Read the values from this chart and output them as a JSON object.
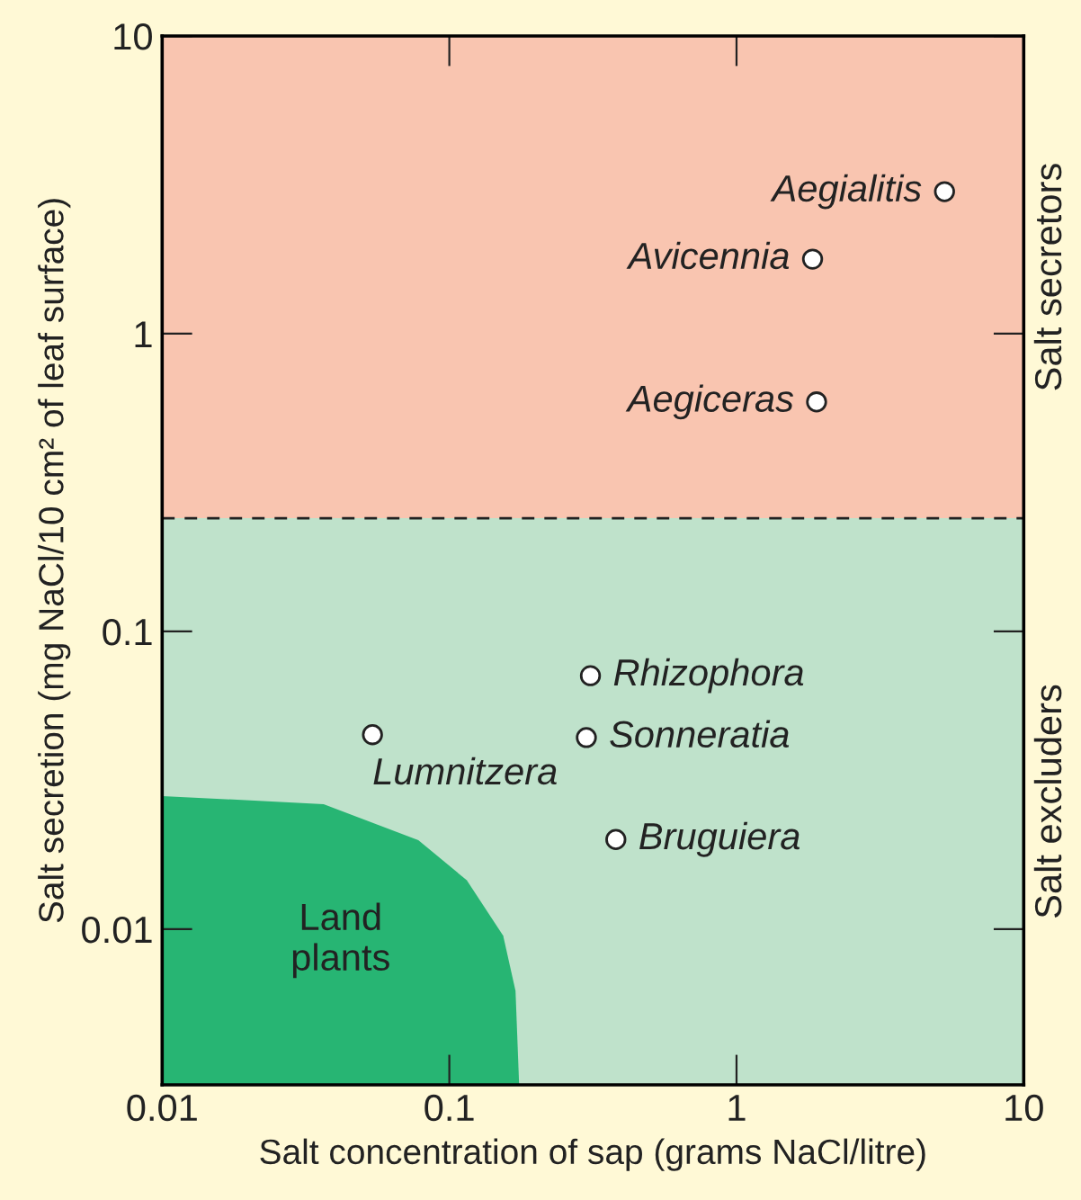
{
  "chart_data": {
    "type": "scatter",
    "xlabel": "Salt concentration of sap (grams NaCl/litre)",
    "ylabel": "Salt secretion (mg NaCl/10 cm² of leaf surface)",
    "log": "xy",
    "xlim": [
      0.01,
      10
    ],
    "ylim": [
      0.003,
      10
    ],
    "xticks": [
      0.01,
      0.1,
      1,
      10
    ],
    "yticks": [
      0.01,
      0.1,
      1,
      10
    ],
    "grid": false,
    "legend": false,
    "series": [
      {
        "type": "area",
        "marker": "none",
        "name": "Land plants",
        "color": "#27b573",
        "x": [
          0.01,
          0.0365,
          0.078,
          0.115,
          0.154,
          0.17,
          0.175
        ],
        "values": [
          0.028,
          0.0263,
          0.0199,
          0.0146,
          0.0095,
          0.0062,
          0.003
        ]
      },
      {
        "marker": "circle",
        "color": "#ffffff",
        "x": [
          5.3,
          1.84,
          1.9,
          0.31,
          0.3,
          0.054,
          0.38
        ],
        "values": [
          3.0,
          1.78,
          0.59,
          0.071,
          0.044,
          0.045,
          0.02
        ]
      }
    ],
    "bands": [
      {
        "axis": "y",
        "from": 0.24,
        "to": 10,
        "label": "Salt secretors",
        "color": "#f9c5b0"
      },
      {
        "axis": "y",
        "from": 0.003,
        "to": 0.24,
        "label": "Salt excluders",
        "color": "#bfe2cb"
      }
    ],
    "ref_lines": [
      {
        "axis": "y",
        "value": 0.24,
        "label": null,
        "line_style": "dashed",
        "color": "#222222"
      }
    ],
    "annotations": [
      {
        "text": "Aegialitis",
        "x": 5.3,
        "y": 3.0
      },
      {
        "text": "Avicennia",
        "x": 1.84,
        "y": 1.78
      },
      {
        "text": "Aegiceras",
        "x": 1.9,
        "y": 0.59
      },
      {
        "text": "Rhizophora",
        "x": 0.31,
        "y": 0.071
      },
      {
        "text": "Sonneratia",
        "x": 0.3,
        "y": 0.044
      },
      {
        "text": "Lumnitzera",
        "x": 0.054,
        "y": 0.045
      },
      {
        "text": "Bruguiera",
        "x": 0.38,
        "y": 0.02
      }
    ]
  }
}
